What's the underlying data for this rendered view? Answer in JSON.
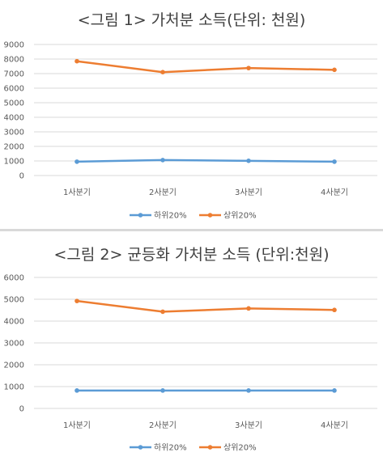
{
  "chart_data": [
    {
      "type": "line",
      "title": "<그림 1> 가처분 소득(단위: 천원)",
      "categories": [
        "1사분기",
        "2사분기",
        "3사분기",
        "4사분기"
      ],
      "series": [
        {
          "name": "하위20%",
          "values": [
            950,
            1060,
            1010,
            950
          ],
          "color": "#5b9bd5"
        },
        {
          "name": "상위20%",
          "values": [
            7850,
            7100,
            7380,
            7260
          ],
          "color": "#ed7d31"
        }
      ],
      "yticks": [
        0,
        1000,
        2000,
        3000,
        4000,
        5000,
        6000,
        7000,
        8000,
        9000
      ],
      "ylim": [
        0,
        9000
      ],
      "grid": true,
      "legend": "bottom"
    },
    {
      "type": "line",
      "title": "<그림 2> 균등화 가처분 소득 (단위:천원)",
      "categories": [
        "1사분기",
        "2사분기",
        "3사분기",
        "4사분기"
      ],
      "series": [
        {
          "name": "하위20%",
          "values": [
            820,
            820,
            820,
            820
          ],
          "color": "#5b9bd5"
        },
        {
          "name": "상위20%",
          "values": [
            4920,
            4430,
            4580,
            4510
          ],
          "color": "#ed7d31"
        }
      ],
      "yticks": [
        0,
        1000,
        2000,
        3000,
        4000,
        5000,
        6000
      ],
      "ylim": [
        0,
        6000
      ],
      "grid": true,
      "legend": "bottom"
    }
  ]
}
